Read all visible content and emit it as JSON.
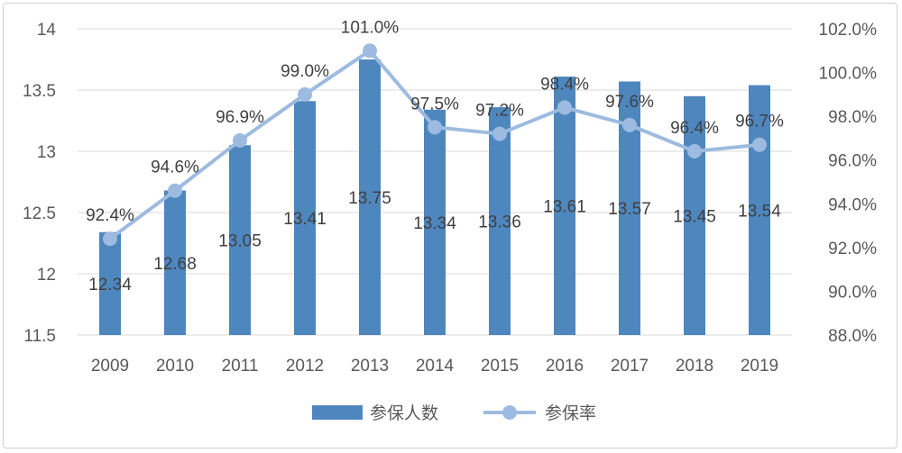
{
  "chart_data": {
    "type": "bar",
    "categories": [
      "2009",
      "2010",
      "2011",
      "2012",
      "2013",
      "2014",
      "2015",
      "2016",
      "2017",
      "2018",
      "2019"
    ],
    "series": [
      {
        "name": "参保人数",
        "type": "bar",
        "axis": "left",
        "values": [
          12.34,
          12.68,
          13.05,
          13.41,
          13.75,
          13.34,
          13.36,
          13.61,
          13.57,
          13.45,
          13.54
        ],
        "labels": [
          "12.34",
          "12.68",
          "13.05",
          "13.41",
          "13.75",
          "13.34",
          "13.36",
          "13.61",
          "13.57",
          "13.45",
          "13.54"
        ],
        "color": "#4e86be"
      },
      {
        "name": "参保率",
        "type": "line",
        "axis": "right",
        "values": [
          92.4,
          94.6,
          96.9,
          99.0,
          101.0,
          97.5,
          97.2,
          98.4,
          97.6,
          96.4,
          96.7
        ],
        "labels": [
          "92.4%",
          "94.6%",
          "96.9%",
          "99.0%",
          "101.0%",
          "97.5%",
          "97.2%",
          "98.4%",
          "97.6%",
          "96.4%",
          "96.7%"
        ],
        "color": "#9dbbe0"
      }
    ],
    "y_left": {
      "min": 11.5,
      "max": 14,
      "ticks": [
        11.5,
        12,
        12.5,
        13,
        13.5,
        14
      ],
      "tick_labels": [
        "11.5",
        "12",
        "12.5",
        "13",
        "13.5",
        "14"
      ]
    },
    "y_right": {
      "min": 88,
      "max": 102,
      "ticks": [
        88,
        90,
        92,
        94,
        96,
        98,
        100,
        102
      ],
      "tick_labels": [
        "88.0%",
        "90.0%",
        "92.0%",
        "94.0%",
        "96.0%",
        "98.0%",
        "100.0%",
        "102.0%"
      ]
    },
    "grid": true,
    "legend_position": "bottom",
    "colors": {
      "axis_text": "#595959",
      "label_text": "#404040",
      "grid": "#d9d9d9"
    }
  }
}
